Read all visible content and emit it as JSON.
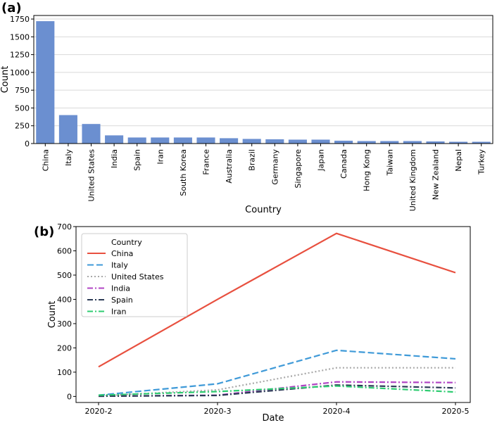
{
  "chart_data": [
    {
      "panel_label": "(a)",
      "type": "bar",
      "title": "",
      "xlabel": "Country",
      "ylabel": "Count",
      "ylim": [
        0,
        1800
      ],
      "yticks": [
        0,
        250,
        500,
        750,
        1000,
        1250,
        1500,
        1750
      ],
      "grid": "horizontal",
      "color": "#6b8fd0",
      "categories": [
        "China",
        "Italy",
        "United States",
        "India",
        "Spain",
        "Iran",
        "South Korea",
        "France",
        "Australia",
        "Brazil",
        "Germany",
        "Singapore",
        "Japan",
        "Canada",
        "Hong Kong",
        "Taiwan",
        "United Kingdom",
        "New Zealand",
        "Nepal",
        "Turkey"
      ],
      "values": [
        1720,
        400,
        275,
        115,
        85,
        85,
        85,
        85,
        75,
        65,
        60,
        55,
        55,
        40,
        35,
        35,
        35,
        30,
        25,
        25
      ]
    },
    {
      "panel_label": "(b)",
      "type": "line",
      "title": "",
      "xlabel": "Date",
      "ylabel": "Count",
      "ylim": [
        -25,
        700
      ],
      "yticks": [
        0,
        100,
        200,
        300,
        400,
        500,
        600,
        700
      ],
      "x": [
        "2020-2",
        "2020-3",
        "2020-4",
        "2020-5"
      ],
      "legend_title": "Country",
      "legend_position": "top-left",
      "series": [
        {
          "name": "China",
          "color": "#e8503f",
          "dash": "solid",
          "values": [
            122,
            400,
            672,
            510
          ]
        },
        {
          "name": "Italy",
          "color": "#3f9ad8",
          "dash": "dashed",
          "values": [
            5,
            52,
            190,
            155
          ]
        },
        {
          "name": "United States",
          "color": "#a8a8a8",
          "dash": "dotted",
          "values": [
            2,
            27,
            118,
            118
          ]
        },
        {
          "name": "India",
          "color": "#b044c4",
          "dash": "dashdot",
          "values": [
            1,
            5,
            60,
            57
          ]
        },
        {
          "name": "Spain",
          "color": "#2b3a55",
          "dash": "dashdot",
          "values": [
            1,
            4,
            47,
            35
          ]
        },
        {
          "name": "Iran",
          "color": "#2ecc71",
          "dash": "dashdot",
          "values": [
            5,
            20,
            43,
            18
          ]
        }
      ]
    }
  ]
}
